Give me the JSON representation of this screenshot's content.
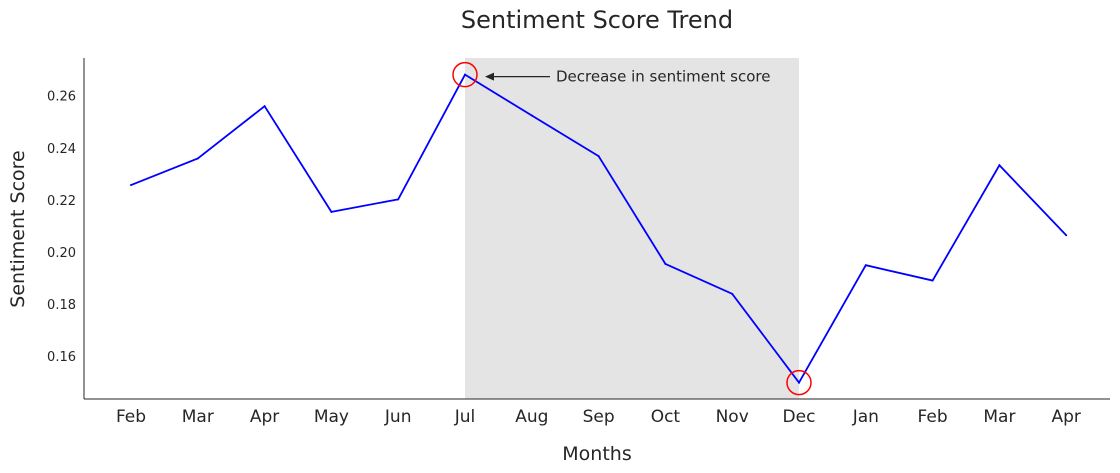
{
  "chart_data": {
    "type": "line",
    "title": "Sentiment Score Trend",
    "xlabel": "Months",
    "ylabel": "Sentiment Score",
    "categories": [
      "Feb",
      "Mar",
      "Apr",
      "May",
      "Jun",
      "Jul",
      "Aug",
      "Sep",
      "Oct",
      "Nov",
      "Dec",
      "Jan",
      "Feb",
      "Mar",
      "Apr"
    ],
    "series": [
      {
        "color": "#0000ff",
        "values": [
          0.2257,
          0.2359,
          0.256,
          0.2154,
          0.2202,
          0.2681,
          0.2524,
          0.2368,
          0.1954,
          0.1839,
          0.1498,
          0.1949,
          0.189,
          0.2333,
          0.2064
        ]
      }
    ],
    "ylim": [
      0.1435,
      0.2745
    ],
    "yticks": [
      0.16,
      0.18,
      0.2,
      0.22,
      0.24,
      0.26
    ],
    "ytick_labels": [
      "0.16",
      "0.18",
      "0.20",
      "0.22",
      "0.24",
      "0.26"
    ],
    "grid": false,
    "highlight_region": {
      "from": "Jul",
      "to": "Dec",
      "color": "#e4e4e4"
    },
    "marked_points": [
      {
        "category_index": 5,
        "color": "#ff0000"
      },
      {
        "category_index": 10,
        "color": "#ff0000"
      }
    ],
    "annotation": {
      "text": "Decrease in sentiment score",
      "points_to_index": 5
    }
  }
}
